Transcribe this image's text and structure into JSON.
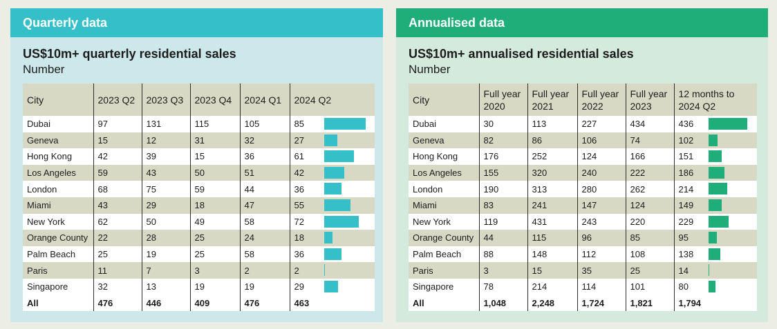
{
  "quarterly": {
    "header": "Quarterly data",
    "title": "US$10m+ quarterly residential sales",
    "subtitle": "Number",
    "columns": [
      "City",
      "2023 Q2",
      "2023 Q3",
      "2023 Q4",
      "2024 Q1",
      "2024 Q2"
    ],
    "bar_color": "#35c0c9",
    "header_color": "#35c0c9"
  },
  "annualised": {
    "header": "Annualised data",
    "title": "US$10m+ annualised residential sales",
    "subtitle": "Number",
    "columns": [
      "City",
      "Full year 2020",
      "Full year 2021",
      "Full year 2022",
      "Full year 2023",
      "12 months to 2024 Q2"
    ],
    "bar_color": "#1fae7a",
    "header_color": "#1fae7a"
  },
  "chart_data": [
    {
      "type": "table",
      "title": "US$10m+ quarterly residential sales",
      "subtitle": "Number",
      "columns": [
        "City",
        "2023 Q2",
        "2023 Q3",
        "2023 Q4",
        "2024 Q1",
        "2024 Q2"
      ],
      "rows": [
        {
          "city": "Dubai",
          "values": [
            "97",
            "131",
            "115",
            "105",
            "85"
          ]
        },
        {
          "city": "Geneva",
          "values": [
            "15",
            "12",
            "31",
            "32",
            "27"
          ]
        },
        {
          "city": "Hong Kong",
          "values": [
            "42",
            "39",
            "15",
            "36",
            "61"
          ]
        },
        {
          "city": "Los Angeles",
          "values": [
            "59",
            "43",
            "50",
            "51",
            "42"
          ]
        },
        {
          "city": "London",
          "values": [
            "68",
            "75",
            "59",
            "44",
            "36"
          ]
        },
        {
          "city": "Miami",
          "values": [
            "43",
            "29",
            "18",
            "47",
            "55"
          ]
        },
        {
          "city": "New York",
          "values": [
            "62",
            "50",
            "49",
            "58",
            "72"
          ]
        },
        {
          "city": "Orange County",
          "values": [
            "22",
            "28",
            "25",
            "24",
            "18"
          ]
        },
        {
          "city": "Palm Beach",
          "values": [
            "25",
            "19",
            "25",
            "58",
            "36"
          ]
        },
        {
          "city": "Paris",
          "values": [
            "11",
            "7",
            "3",
            "2",
            "2"
          ]
        },
        {
          "city": "Singapore",
          "values": [
            "32",
            "13",
            "19",
            "19",
            "29"
          ]
        }
      ],
      "total": {
        "city": "All",
        "values": [
          "476",
          "446",
          "409",
          "476",
          "463"
        ]
      },
      "bar_column": "2024 Q2",
      "bar_max": 85
    },
    {
      "type": "table",
      "title": "US$10m+ annualised residential sales",
      "subtitle": "Number",
      "columns": [
        "City",
        "Full year 2020",
        "Full year 2021",
        "Full year 2022",
        "Full year 2023",
        "12 months to 2024 Q2"
      ],
      "rows": [
        {
          "city": "Dubai",
          "values": [
            "30",
            "113",
            "227",
            "434",
            "436"
          ]
        },
        {
          "city": "Geneva",
          "values": [
            "82",
            "86",
            "106",
            "74",
            "102"
          ]
        },
        {
          "city": "Hong Kong",
          "values": [
            "176",
            "252",
            "124",
            "166",
            "151"
          ]
        },
        {
          "city": "Los Angeles",
          "values": [
            "155",
            "320",
            "240",
            "222",
            "186"
          ]
        },
        {
          "city": "London",
          "values": [
            "190",
            "313",
            "280",
            "262",
            "214"
          ]
        },
        {
          "city": "Miami",
          "values": [
            "83",
            "241",
            "147",
            "124",
            "149"
          ]
        },
        {
          "city": "New York",
          "values": [
            "119",
            "431",
            "243",
            "220",
            "229"
          ]
        },
        {
          "city": "Orange County",
          "values": [
            "44",
            "115",
            "96",
            "85",
            "95"
          ]
        },
        {
          "city": "Palm Beach",
          "values": [
            "88",
            "148",
            "112",
            "108",
            "138"
          ]
        },
        {
          "city": "Paris",
          "values": [
            "3",
            "15",
            "35",
            "25",
            "14"
          ]
        },
        {
          "city": "Singapore",
          "values": [
            "78",
            "214",
            "114",
            "101",
            "80"
          ]
        }
      ],
      "total": {
        "city": "All",
        "values": [
          "1,048",
          "2,248",
          "1,724",
          "1,821",
          "1,794"
        ]
      },
      "bar_column": "12 months to 2024 Q2",
      "bar_max": 436
    }
  ]
}
